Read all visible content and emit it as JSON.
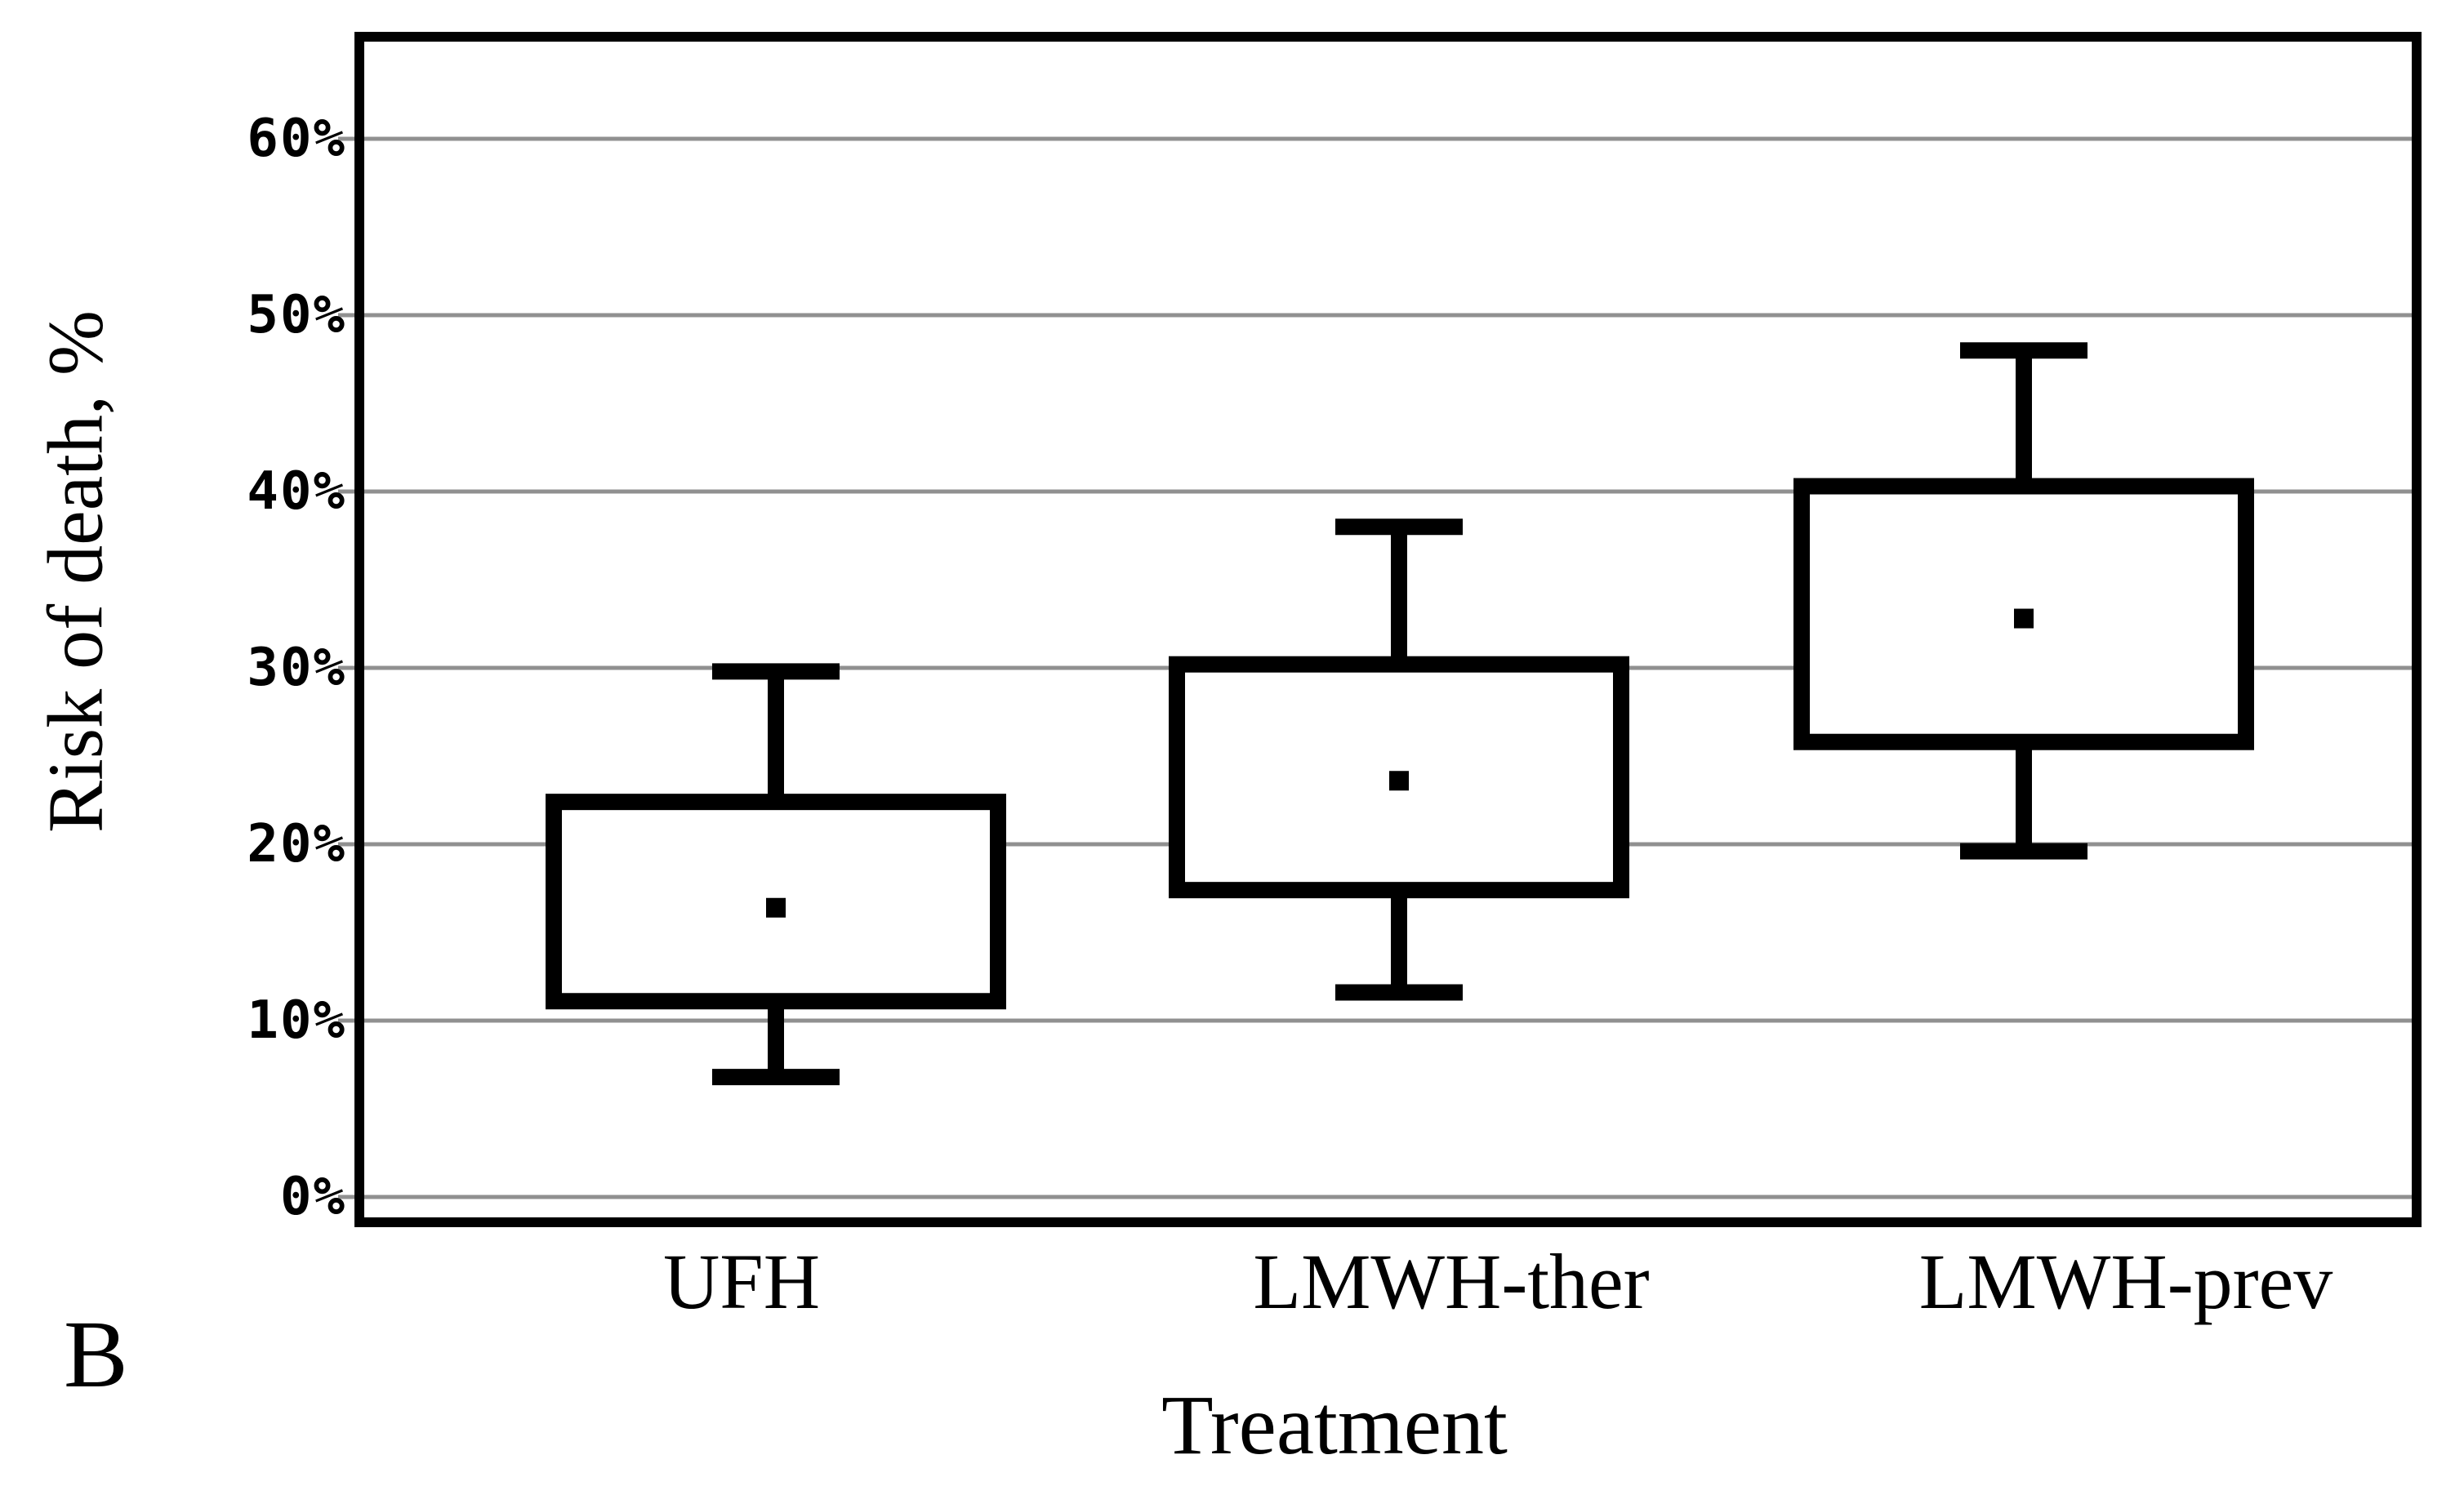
{
  "chart_data": {
    "type": "boxplot",
    "title": "",
    "xlabel": "Treatment",
    "ylabel": "Risk of death, %",
    "panel_label": "B",
    "categories": [
      "UFH",
      "LMWH-ther",
      "LMWH-prev"
    ],
    "series": [
      {
        "name": "UFH",
        "whisker_low": 6.8,
        "q1": 11.1,
        "mean": 16.4,
        "q3": 22.4,
        "whisker_high": 29.8
      },
      {
        "name": "LMWH-ther",
        "whisker_low": 11.6,
        "q1": 17.4,
        "mean": 23.6,
        "q3": 30.2,
        "whisker_high": 38.0
      },
      {
        "name": "LMWH-prev",
        "whisker_low": 19.6,
        "q1": 25.8,
        "mean": 32.8,
        "q3": 40.3,
        "whisker_high": 48.0
      }
    ],
    "y_ticks": [
      {
        "value": 0,
        "label": "0%"
      },
      {
        "value": 10,
        "label": "10%"
      },
      {
        "value": 20,
        "label": "20%"
      },
      {
        "value": 30,
        "label": "30%"
      },
      {
        "value": 40,
        "label": "40%"
      },
      {
        "value": 50,
        "label": "50%"
      },
      {
        "value": 60,
        "label": "60%"
      }
    ],
    "ylim": [
      0,
      60
    ],
    "grid": true,
    "legend": "none",
    "center_marker": "mean-dot",
    "colors": {
      "box_stroke": "#000000",
      "gridline": "#909090",
      "background": "#ffffff",
      "text": "#000000"
    }
  }
}
